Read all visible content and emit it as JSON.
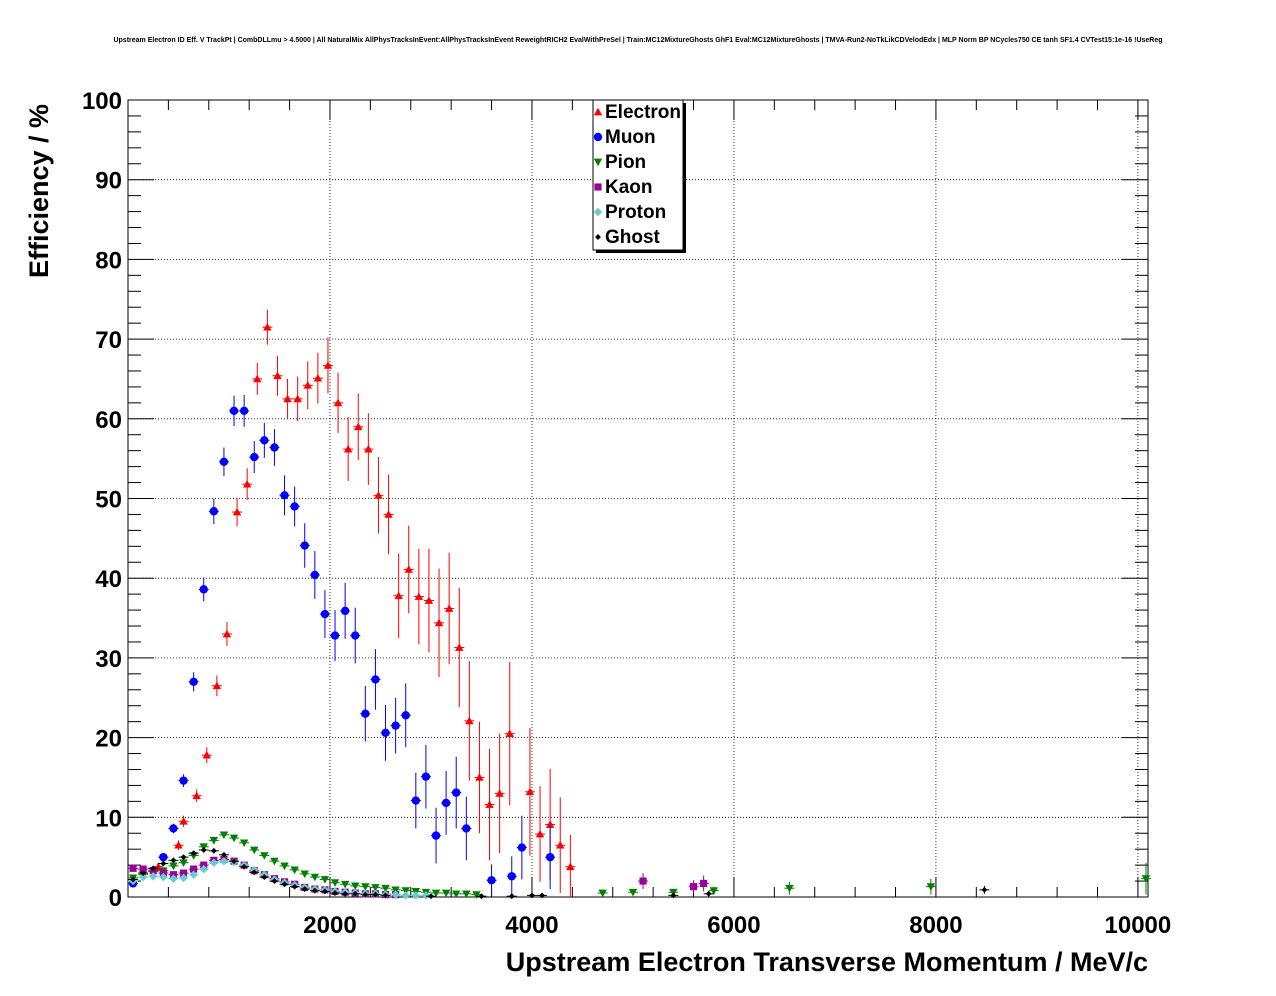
{
  "chart_data": {
    "type": "scatter",
    "title": "Upstream Electron ID Eff. V TrackPt | CombDLLmu > 4.5000 | All NaturalMix AllPhysTracksInEvent:AllPhysTracksInEvent ReweightRICH2 EvalWithPreSel | Train:MC12MixtureGhosts GhF1 Eval:MC12MixtureGhosts | TMVA-Run2-NoTkLikCDVelodEdx | MLP Norm BP NCycles750 CE tanh SF1.4 CVTest15:1e-16 !UseReg",
    "xlabel": "Upstream Electron Transverse Momentum / MeV/c",
    "ylabel": "Efficiency / %",
    "xlim": [
      0,
      10100
    ],
    "ylim": [
      0,
      100
    ],
    "xticks": [
      2000,
      4000,
      6000,
      8000,
      10000
    ],
    "yticks": [
      0,
      10,
      20,
      30,
      40,
      50,
      60,
      70,
      80,
      90,
      100
    ],
    "grid": true,
    "legend_position": "top-center",
    "series": [
      {
        "name": "Electron",
        "color": "#ff0000",
        "marker": "triangle-up",
        "points": [
          [
            300,
            3.8,
            0.5
          ],
          [
            500,
            6.5,
            0.6
          ],
          [
            550,
            9.5,
            0.7
          ],
          [
            680,
            12.7,
            0.8
          ],
          [
            780,
            17.8,
            1.0
          ],
          [
            880,
            26.5,
            1.3
          ],
          [
            980,
            33.0,
            1.5
          ],
          [
            1080,
            48.3,
            1.8
          ],
          [
            1180,
            51.8,
            2.0
          ],
          [
            1280,
            65.0,
            2.0
          ],
          [
            1380,
            71.5,
            2.2
          ],
          [
            1480,
            65.4,
            2.5
          ],
          [
            1580,
            62.5,
            2.5
          ],
          [
            1680,
            62.5,
            2.8
          ],
          [
            1780,
            64.2,
            3.0
          ],
          [
            1880,
            65.1,
            3.2
          ],
          [
            1980,
            66.7,
            3.5
          ],
          [
            2080,
            62.0,
            3.8
          ],
          [
            2180,
            56.2,
            4.0
          ],
          [
            2280,
            59.0,
            4.2
          ],
          [
            2380,
            56.2,
            4.5
          ],
          [
            2480,
            50.4,
            4.8
          ],
          [
            2580,
            48.0,
            5.0
          ],
          [
            2680,
            37.8,
            5.3
          ],
          [
            2780,
            41.1,
            5.5
          ],
          [
            2880,
            37.7,
            6.0
          ],
          [
            2980,
            37.2,
            6.5
          ],
          [
            3080,
            34.4,
            6.8
          ],
          [
            3180,
            36.2,
            7.0
          ],
          [
            3280,
            31.3,
            7.5
          ],
          [
            3380,
            22.1,
            7.5
          ],
          [
            3480,
            15.0,
            7.0
          ],
          [
            3580,
            11.6,
            7.0
          ],
          [
            3680,
            13.0,
            7.5
          ],
          [
            3780,
            20.5,
            9.0
          ],
          [
            3980,
            13.2,
            8.0
          ],
          [
            4080,
            7.9,
            6.0
          ],
          [
            4180,
            9.1,
            7.0
          ],
          [
            4280,
            6.5,
            6.0
          ],
          [
            4380,
            3.8,
            4.0
          ]
        ]
      },
      {
        "name": "Muon",
        "color": "#0000ff",
        "marker": "circle",
        "points": [
          [
            50,
            1.7,
            0.3
          ],
          [
            350,
            5.0,
            0.5
          ],
          [
            450,
            8.6,
            0.6
          ],
          [
            550,
            14.6,
            0.8
          ],
          [
            650,
            27.0,
            1.2
          ],
          [
            750,
            38.6,
            1.5
          ],
          [
            850,
            48.4,
            1.6
          ],
          [
            950,
            54.6,
            1.8
          ],
          [
            1050,
            61.0,
            1.9
          ],
          [
            1150,
            61.0,
            2.0
          ],
          [
            1250,
            55.2,
            2.0
          ],
          [
            1350,
            57.3,
            2.2
          ],
          [
            1450,
            56.4,
            2.3
          ],
          [
            1550,
            50.4,
            2.5
          ],
          [
            1650,
            49.0,
            2.5
          ],
          [
            1750,
            44.1,
            2.8
          ],
          [
            1850,
            40.4,
            3.0
          ],
          [
            1950,
            35.5,
            3.0
          ],
          [
            2050,
            32.8,
            3.2
          ],
          [
            2150,
            35.9,
            3.5
          ],
          [
            2250,
            32.8,
            3.5
          ],
          [
            2350,
            23.0,
            3.5
          ],
          [
            2450,
            27.3,
            3.8
          ],
          [
            2550,
            20.6,
            3.5
          ],
          [
            2650,
            21.5,
            3.5
          ],
          [
            2750,
            22.8,
            4.0
          ],
          [
            2850,
            12.1,
            3.5
          ],
          [
            2950,
            15.1,
            4.0
          ],
          [
            3050,
            7.7,
            3.5
          ],
          [
            3150,
            11.8,
            4.0
          ],
          [
            3250,
            13.1,
            4.5
          ],
          [
            3350,
            8.6,
            4.0
          ],
          [
            3600,
            2.1,
            2.0
          ],
          [
            3800,
            2.6,
            2.5
          ],
          [
            3900,
            6.2,
            4.0
          ],
          [
            4180,
            5.0,
            4.0
          ]
        ]
      },
      {
        "name": "Pion",
        "color": "#008000",
        "marker": "triangle-down",
        "points": [
          [
            50,
            2.4,
            0.2
          ],
          [
            150,
            2.8,
            0.2
          ],
          [
            250,
            3.2,
            0.2
          ],
          [
            350,
            3.3,
            0.2
          ],
          [
            450,
            3.9,
            0.2
          ],
          [
            550,
            4.3,
            0.2
          ],
          [
            650,
            5.2,
            0.2
          ],
          [
            750,
            6.3,
            0.2
          ],
          [
            850,
            7.1,
            0.2
          ],
          [
            950,
            7.8,
            0.2
          ],
          [
            1050,
            7.4,
            0.2
          ],
          [
            1150,
            6.8,
            0.2
          ],
          [
            1250,
            5.9,
            0.2
          ],
          [
            1350,
            5.2,
            0.2
          ],
          [
            1450,
            4.5,
            0.2
          ],
          [
            1550,
            3.9,
            0.2
          ],
          [
            1650,
            3.4,
            0.2
          ],
          [
            1750,
            2.9,
            0.2
          ],
          [
            1850,
            2.5,
            0.2
          ],
          [
            1950,
            2.2,
            0.2
          ],
          [
            2050,
            1.8,
            0.2
          ],
          [
            2150,
            1.6,
            0.2
          ],
          [
            2250,
            1.4,
            0.2
          ],
          [
            2350,
            1.3,
            0.2
          ],
          [
            2450,
            1.2,
            0.2
          ],
          [
            2550,
            1.1,
            0.2
          ],
          [
            2650,
            0.9,
            0.2
          ],
          [
            2750,
            0.8,
            0.2
          ],
          [
            2850,
            0.7,
            0.2
          ],
          [
            2950,
            0.6,
            0.2
          ],
          [
            3050,
            0.5,
            0.2
          ],
          [
            3150,
            0.5,
            0.2
          ],
          [
            3250,
            0.4,
            0.2
          ],
          [
            3350,
            0.4,
            0.2
          ],
          [
            3450,
            0.3,
            0.2
          ],
          [
            4700,
            0.5,
            0.3
          ],
          [
            5000,
            0.6,
            0.4
          ],
          [
            5400,
            0.6,
            0.4
          ],
          [
            5800,
            0.8,
            0.5
          ],
          [
            6550,
            1.1,
            0.8
          ],
          [
            7950,
            1.3,
            1.0
          ],
          [
            10080,
            2.3,
            2.0
          ]
        ]
      },
      {
        "name": "Kaon",
        "color": "#990099",
        "marker": "square",
        "points": [
          [
            50,
            3.6,
            0.2
          ],
          [
            150,
            3.5,
            0.2
          ],
          [
            250,
            3.3,
            0.2
          ],
          [
            350,
            3.0,
            0.2
          ],
          [
            450,
            2.8,
            0.2
          ],
          [
            550,
            3.0,
            0.2
          ],
          [
            650,
            3.5,
            0.2
          ],
          [
            750,
            4.0,
            0.2
          ],
          [
            850,
            4.6,
            0.2
          ],
          [
            950,
            4.7,
            0.2
          ],
          [
            1050,
            4.5,
            0.2
          ],
          [
            1150,
            4.0,
            0.2
          ],
          [
            1250,
            3.3,
            0.2
          ],
          [
            1350,
            2.8,
            0.2
          ],
          [
            1450,
            2.3,
            0.2
          ],
          [
            1550,
            1.9,
            0.2
          ],
          [
            1650,
            1.6,
            0.2
          ],
          [
            1750,
            1.2,
            0.2
          ],
          [
            1850,
            1.0,
            0.2
          ],
          [
            1950,
            0.9,
            0.2
          ],
          [
            2050,
            0.7,
            0.2
          ],
          [
            2150,
            0.6,
            0.2
          ],
          [
            2250,
            0.5,
            0.2
          ],
          [
            2350,
            0.4,
            0.2
          ],
          [
            2450,
            0.4,
            0.2
          ],
          [
            2550,
            0.3,
            0.2
          ],
          [
            2650,
            0.3,
            0.2
          ],
          [
            5100,
            2.0,
            1.0
          ],
          [
            5600,
            1.3,
            0.8
          ],
          [
            5700,
            1.7,
            1.0
          ]
        ]
      },
      {
        "name": "Proton",
        "color": "#66cccc",
        "marker": "diamond",
        "points": [
          [
            50,
            2.0,
            0.2
          ],
          [
            150,
            2.5,
            0.2
          ],
          [
            250,
            2.6,
            0.2
          ],
          [
            350,
            2.5,
            0.2
          ],
          [
            450,
            2.3,
            0.2
          ],
          [
            550,
            2.4,
            0.2
          ],
          [
            650,
            2.8,
            0.2
          ],
          [
            750,
            3.5,
            0.2
          ],
          [
            850,
            4.3,
            0.2
          ],
          [
            950,
            4.5,
            0.2
          ],
          [
            1050,
            4.4,
            0.2
          ],
          [
            1150,
            4.0,
            0.2
          ],
          [
            1250,
            3.4,
            0.2
          ],
          [
            1350,
            2.8,
            0.2
          ],
          [
            1450,
            2.2,
            0.2
          ],
          [
            1550,
            1.8,
            0.2
          ],
          [
            1650,
            1.5,
            0.2
          ],
          [
            1750,
            1.2,
            0.2
          ],
          [
            1850,
            1.0,
            0.2
          ],
          [
            1950,
            0.9,
            0.2
          ],
          [
            2050,
            0.7,
            0.2
          ],
          [
            2150,
            0.6,
            0.2
          ],
          [
            2250,
            0.5,
            0.2
          ],
          [
            2350,
            0.4,
            0.2
          ],
          [
            2450,
            0.4,
            0.2
          ],
          [
            2550,
            0.3,
            0.2
          ],
          [
            2650,
            0.3,
            0.2
          ],
          [
            2750,
            0.2,
            0.2
          ],
          [
            2850,
            0.2,
            0.2
          ],
          [
            2950,
            0.2,
            0.2
          ]
        ]
      },
      {
        "name": "Ghost",
        "color": "#000000",
        "marker": "small-diamond",
        "points": [
          [
            50,
            2.2,
            0.2
          ],
          [
            150,
            3.0,
            0.2
          ],
          [
            250,
            3.6,
            0.2
          ],
          [
            350,
            4.2,
            0.2
          ],
          [
            450,
            4.6,
            0.2
          ],
          [
            550,
            5.0,
            0.2
          ],
          [
            650,
            5.5,
            0.2
          ],
          [
            750,
            5.9,
            0.2
          ],
          [
            850,
            5.8,
            0.2
          ],
          [
            950,
            5.3,
            0.2
          ],
          [
            1050,
            4.5,
            0.2
          ],
          [
            1150,
            3.8,
            0.2
          ],
          [
            1250,
            3.1,
            0.2
          ],
          [
            1350,
            2.5,
            0.2
          ],
          [
            1450,
            2.0,
            0.2
          ],
          [
            1550,
            1.6,
            0.2
          ],
          [
            1650,
            1.3,
            0.2
          ],
          [
            1750,
            1.0,
            0.2
          ],
          [
            1850,
            0.8,
            0.2
          ],
          [
            1950,
            0.7,
            0.2
          ],
          [
            2050,
            0.5,
            0.2
          ],
          [
            2150,
            0.4,
            0.2
          ],
          [
            2250,
            0.4,
            0.2
          ],
          [
            2350,
            0.3,
            0.2
          ],
          [
            2450,
            0.3,
            0.2
          ],
          [
            2550,
            0.2,
            0.2
          ],
          [
            3000,
            0.1,
            0.1
          ],
          [
            3500,
            0.1,
            0.1
          ],
          [
            3800,
            0.1,
            0.1
          ],
          [
            4000,
            0.2,
            0.2
          ],
          [
            4100,
            0.2,
            0.2
          ],
          [
            5400,
            0.2,
            0.2
          ],
          [
            5750,
            0.4,
            0.3
          ],
          [
            8480,
            0.9,
            0.5
          ]
        ]
      }
    ]
  }
}
